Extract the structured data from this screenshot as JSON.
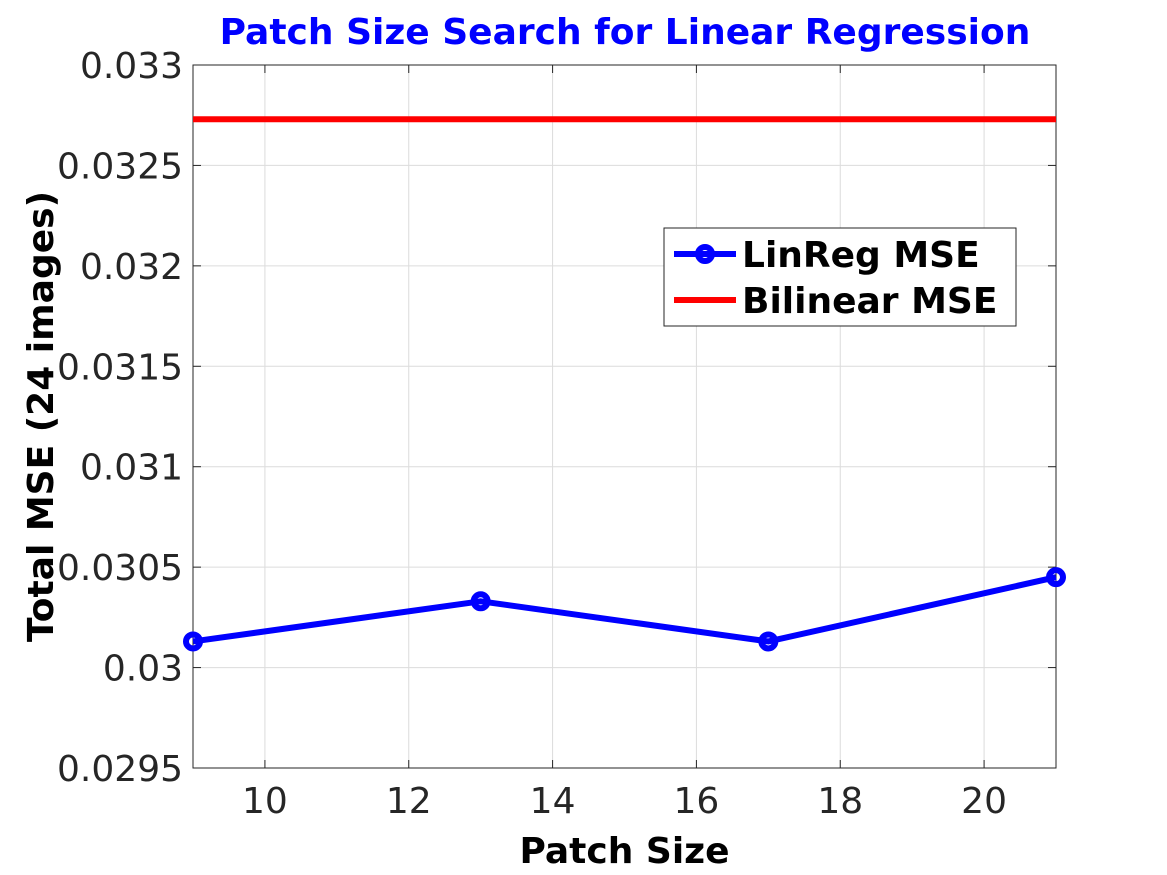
{
  "chart_data": {
    "type": "line",
    "title": "Patch Size Search for Linear Regression",
    "xlabel": "Patch Size",
    "ylabel": "Total MSE (24 images)",
    "xlim": [
      9,
      21
    ],
    "ylim": [
      0.0295,
      0.033
    ],
    "xticks": [
      10,
      12,
      14,
      16,
      18,
      20
    ],
    "yticks": [
      0.0295,
      0.03,
      0.0305,
      0.031,
      0.0315,
      0.032,
      0.0325,
      0.033
    ],
    "ytick_labels": [
      "0.0295",
      "0.03",
      "0.0305",
      "0.031",
      "0.0315",
      "0.032",
      "0.0325",
      "0.033"
    ],
    "grid": true,
    "legend_position": "top-right",
    "series": [
      {
        "name": "LinReg MSE",
        "color": "#0000ff",
        "marker": "circle",
        "x": [
          9,
          13,
          17,
          21
        ],
        "y": [
          0.03013,
          0.03033,
          0.03013,
          0.03045
        ]
      },
      {
        "name": "Bilinear MSE",
        "color": "#ff0000",
        "marker": "none",
        "x": [
          9,
          21
        ],
        "y": [
          0.03273,
          0.03273
        ]
      }
    ],
    "title_color": "#0000ff"
  }
}
